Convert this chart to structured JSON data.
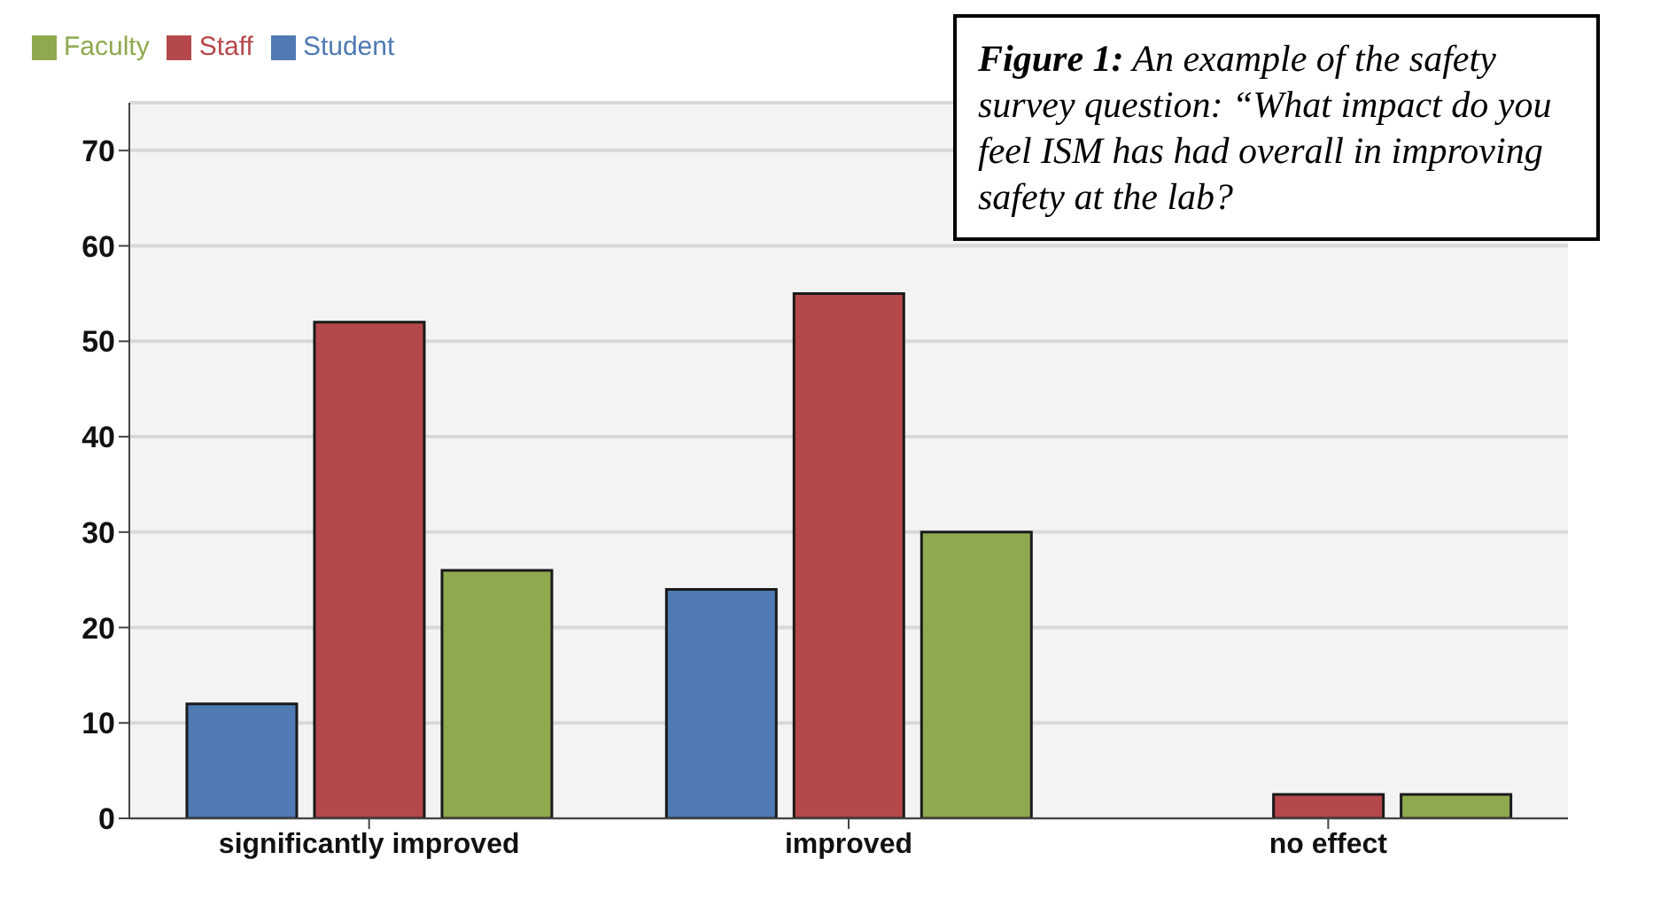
{
  "chart_data": {
    "type": "bar",
    "categories": [
      "significantly improved",
      "improved",
      "no effect"
    ],
    "series": [
      {
        "name": "Student",
        "color": "#4f7ab3",
        "values": [
          12,
          24,
          0
        ]
      },
      {
        "name": "Staff",
        "color": "#b5484a",
        "values": [
          52,
          55,
          2.5
        ]
      },
      {
        "name": "Faculty",
        "color": "#8fa94f",
        "values": [
          26,
          30,
          2.5
        ]
      }
    ],
    "ylim": [
      0,
      75
    ],
    "yticks": [
      0,
      10,
      20,
      30,
      40,
      50,
      60,
      70
    ],
    "grid": "y",
    "legend": "top left",
    "annotations": [
      "Figure 1: An example of the safety survey question: “What impact do you feel ISM has had overall in improving safety at the lab?"
    ]
  }
}
